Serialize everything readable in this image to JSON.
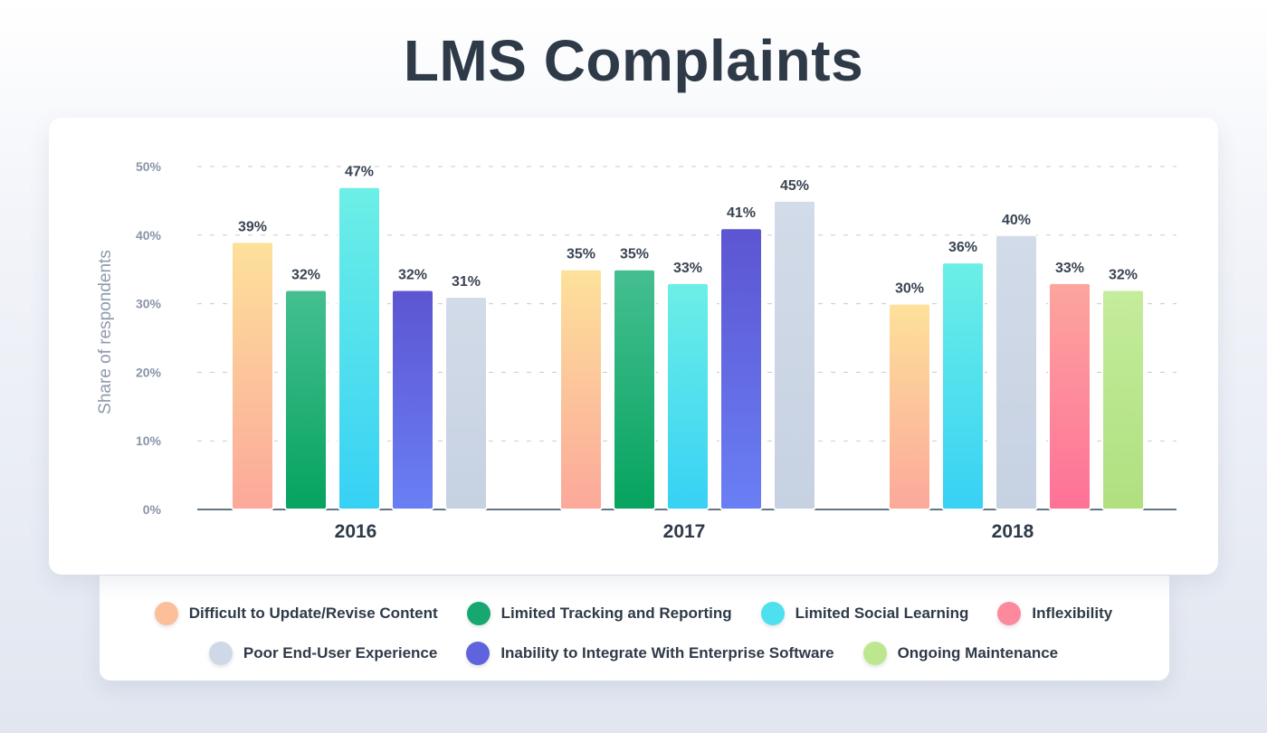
{
  "title": "LMS Complaints",
  "chart_data": {
    "type": "bar",
    "title": "LMS Complaints",
    "ylabel": "Share of respondents",
    "xlabel": "",
    "ylim": [
      0,
      50
    ],
    "y_ticks": [
      "0%",
      "10%",
      "20%",
      "30%",
      "40%",
      "50%"
    ],
    "grid": true,
    "legend_position": "bottom",
    "series_defs": [
      {
        "name": "Difficult to Update/Revise Content",
        "color_top": "#fde19a",
        "color_bottom": "#fca89a"
      },
      {
        "name": "Limited Tracking and Reporting",
        "color_top": "#45bf91",
        "color_bottom": "#06a35f"
      },
      {
        "name": "Limited Social Learning",
        "color_top": "#6cefe6",
        "color_bottom": "#37d1f5"
      },
      {
        "name": "Inflexibility",
        "color_top": "#fca59e",
        "color_bottom": "#ff7198"
      },
      {
        "name": "Poor End-User Experience",
        "color_top": "#d2dbe8",
        "color_bottom": "#c6d1e2"
      },
      {
        "name": "Inability to Integrate With Enterprise Software",
        "color_top": "#5c55d1",
        "color_bottom": "#6a7ff5"
      },
      {
        "name": "Ongoing Maintenance",
        "color_top": "#c4ec9c",
        "color_bottom": "#afe07f"
      }
    ],
    "groups": [
      {
        "category": "2016",
        "bars": [
          {
            "series": "Difficult to Update/Revise Content",
            "value": 39,
            "label": "39%"
          },
          {
            "series": "Limited Tracking and Reporting",
            "value": 32,
            "label": "32%"
          },
          {
            "series": "Limited Social Learning",
            "value": 47,
            "label": "47%"
          },
          {
            "series": "Inability to Integrate With Enterprise Software",
            "value": 32,
            "label": "32%"
          },
          {
            "series": "Poor End-User Experience",
            "value": 31,
            "label": "31%"
          }
        ]
      },
      {
        "category": "2017",
        "bars": [
          {
            "series": "Difficult to Update/Revise Content",
            "value": 35,
            "label": "35%"
          },
          {
            "series": "Limited Tracking and Reporting",
            "value": 35,
            "label": "35%"
          },
          {
            "series": "Limited Social Learning",
            "value": 33,
            "label": "33%"
          },
          {
            "series": "Inability to Integrate With Enterprise Software",
            "value": 41,
            "label": "41%"
          },
          {
            "series": "Poor End-User Experience",
            "value": 45,
            "label": "45%"
          }
        ]
      },
      {
        "category": "2018",
        "bars": [
          {
            "series": "Difficult to Update/Revise Content",
            "value": 30,
            "label": "30%"
          },
          {
            "series": "Limited Social Learning",
            "value": 36,
            "label": "36%"
          },
          {
            "series": "Poor End-User Experience",
            "value": 40,
            "label": "40%"
          },
          {
            "series": "Inflexibility",
            "value": 33,
            "label": "33%"
          },
          {
            "series": "Ongoing Maintenance",
            "value": 32,
            "label": "32%"
          }
        ]
      }
    ]
  },
  "legend": {
    "row1": [
      {
        "label": "Difficult to Update/Revise Content",
        "color": "#fcbf9a"
      },
      {
        "label": "Limited Tracking and Reporting",
        "color": "#16a870"
      },
      {
        "label": "Limited Social Learning",
        "color": "#4ee0ef"
      },
      {
        "label": "Inflexibility",
        "color": "#fd8a9c"
      }
    ],
    "row2": [
      {
        "label": "Poor End-User Experience",
        "color": "#cfd8e6"
      },
      {
        "label": "Inability to Integrate With Enterprise Software",
        "color": "#5f63dd"
      },
      {
        "label": "Ongoing Maintenance",
        "color": "#bde78f"
      }
    ]
  }
}
